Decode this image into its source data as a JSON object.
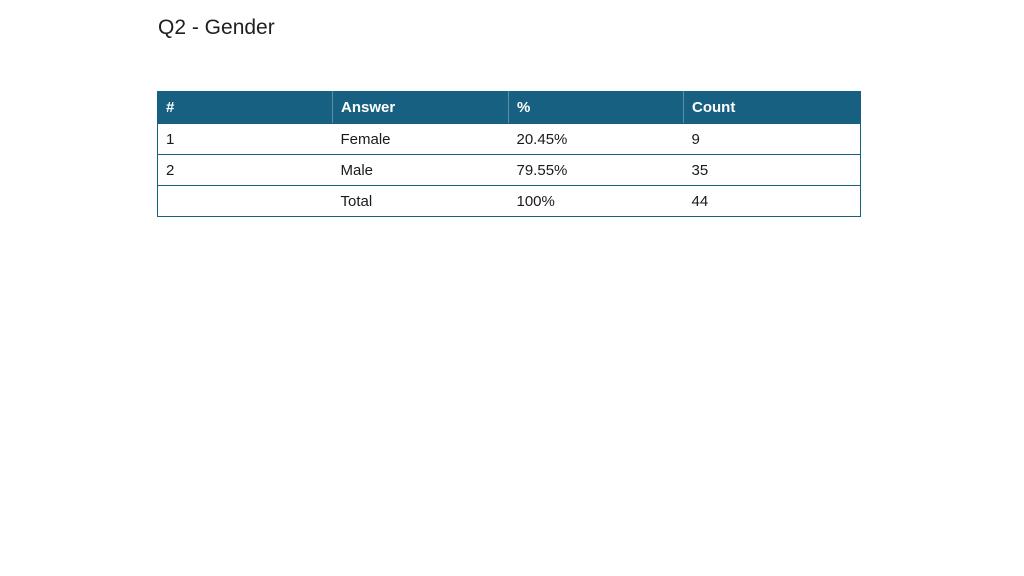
{
  "slide": {
    "title": "Q2 - Gender"
  },
  "table": {
    "headers": [
      "#",
      "Answer",
      "%",
      "Count"
    ],
    "rows": [
      [
        "1",
        "Female",
        "20.45%",
        "9"
      ],
      [
        "2",
        "Male",
        "79.55%",
        "35"
      ],
      [
        "",
        "Total",
        "100%",
        "44"
      ]
    ]
  },
  "colors": {
    "header_background": "#186082",
    "header_text": "#ffffff",
    "border": "#186082"
  }
}
